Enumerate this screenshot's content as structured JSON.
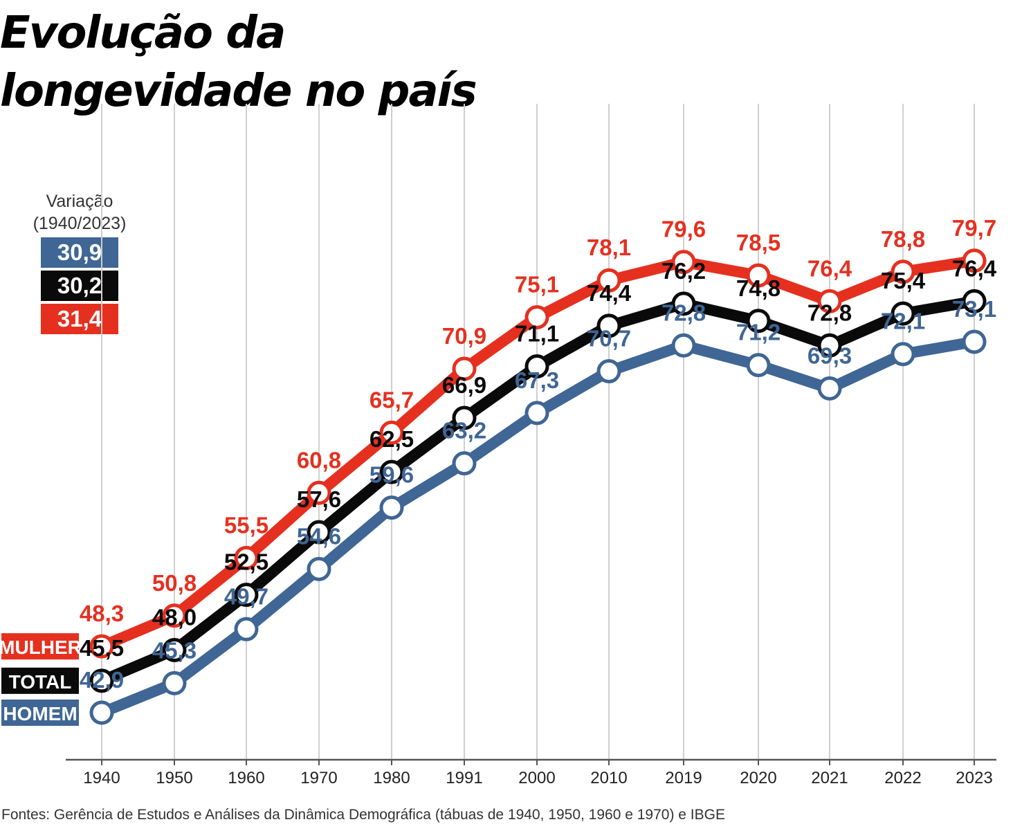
{
  "title_lines": [
    "Evolução da",
    "longevidade no país"
  ],
  "variation": {
    "label_lines": [
      "Variação",
      "(1940/2023)"
    ],
    "values": [
      "30,9",
      "30,2",
      "31,4"
    ]
  },
  "colors": {
    "homem": "#3f6694",
    "total": "#0a0a0a",
    "mulher": "#e5301f",
    "axis": "#555555",
    "grid": "#cfcfcf"
  },
  "source": "Fontes: Gerência de Estudos e Análises da Dinâmica Demográfica (tábuas de 1940, 1950, 1960 e 1970) e IBGE",
  "chart_data": {
    "type": "line",
    "title": "Evolução da longevidade no país",
    "categories": [
      "1940",
      "1950",
      "1960",
      "1970",
      "1980",
      "1991",
      "2000",
      "2010",
      "2019",
      "2020",
      "2021",
      "2022",
      "2023"
    ],
    "ylim": [
      40,
      82
    ],
    "grid": "vertical",
    "series": [
      {
        "name": "MULHER",
        "key": "mulher",
        "values": [
          48.3,
          50.8,
          55.5,
          60.8,
          65.7,
          70.9,
          75.1,
          78.1,
          79.6,
          78.5,
          76.4,
          78.8,
          79.7
        ],
        "labels": [
          "48,3",
          "50,8",
          "55,5",
          "60,8",
          "65,7",
          "70,9",
          "75,1",
          "78,1",
          "79,6",
          "78,5",
          "76,4",
          "78,8",
          "79,7"
        ]
      },
      {
        "name": "TOTAL",
        "key": "total",
        "values": [
          45.5,
          48.0,
          52.5,
          57.6,
          62.5,
          66.9,
          71.1,
          74.4,
          76.2,
          74.8,
          72.8,
          75.4,
          76.4
        ],
        "labels": [
          "45,5",
          "48,0",
          "52,5",
          "57,6",
          "62,5",
          "66,9",
          "71,1",
          "74,4",
          "76,2",
          "74,8",
          "72,8",
          "75,4",
          "76,4"
        ]
      },
      {
        "name": "HOMEM",
        "key": "homem",
        "values": [
          42.9,
          45.3,
          49.7,
          54.6,
          59.6,
          63.2,
          67.3,
          70.7,
          72.8,
          71.2,
          69.3,
          72.1,
          73.1
        ],
        "labels": [
          "42,9",
          "45,3",
          "49,7",
          "54,6",
          "59,6",
          "63,2",
          "67,3",
          "70,7",
          "72,8",
          "71,2",
          "69,3",
          "72,1",
          "73,1"
        ]
      }
    ]
  }
}
